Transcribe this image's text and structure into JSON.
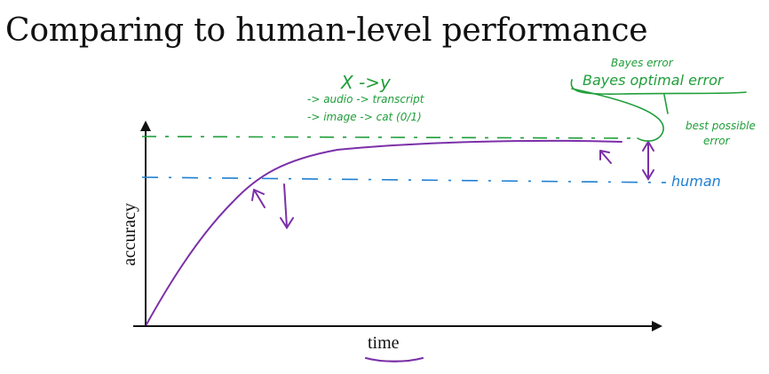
{
  "title": "Comparing to human-level performance",
  "axes": {
    "ylabel": "accuracy",
    "xlabel": "time"
  },
  "annotations": {
    "x_to_y": "X ->y",
    "audio_line": "-> audio -> transcript",
    "image_line": "-> image -> cat (0/1)",
    "bayes_error_small": "Bayes error",
    "bayes_optimal_error": "Bayes optimal error",
    "best_possible_1": "best possible",
    "best_possible_2": "error",
    "human": "human"
  },
  "colors": {
    "curve": "#7b2fa8",
    "bayes": "#1f9e3a",
    "human": "#1f7fd1",
    "axis": "#111111",
    "underline": "#7b2fa8"
  },
  "chart_data": {
    "type": "line",
    "curve_shape": "rises quickly from origin, then plateaus just below the Bayes optimal error line, above human-level",
    "reference_lines": [
      {
        "name": "Bayes optimal error",
        "style": "dashed",
        "color": "#1f9e3a"
      },
      {
        "name": "human",
        "style": "dash-dot",
        "color": "#1f7fd1"
      }
    ]
  }
}
